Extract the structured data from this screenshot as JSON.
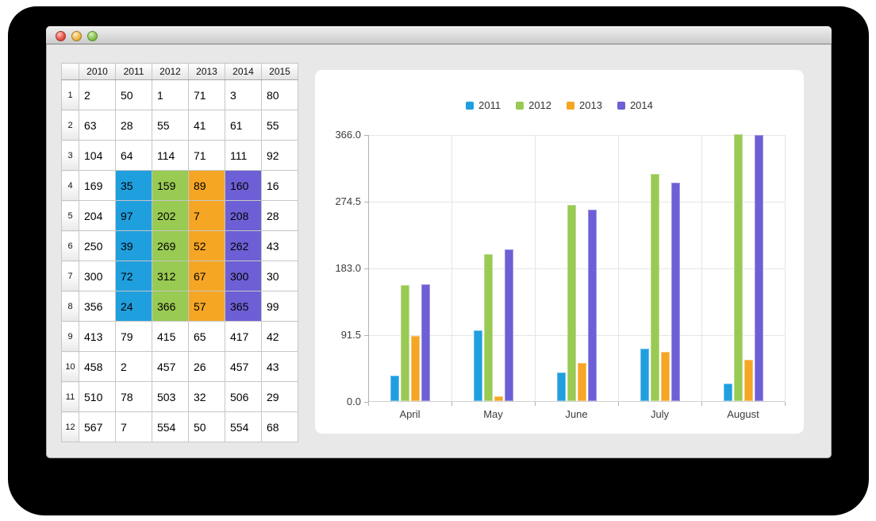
{
  "window": {
    "buttons": [
      {
        "name": "close",
        "color": "#e8584d"
      },
      {
        "name": "minimize",
        "color": "#f0bb4d"
      },
      {
        "name": "zoom",
        "color": "#8cc351"
      }
    ]
  },
  "table": {
    "column_headers": [
      "2010",
      "2011",
      "2012",
      "2013",
      "2014",
      "2015"
    ],
    "row_headers": [
      "1",
      "2",
      "3",
      "4",
      "5",
      "6",
      "7",
      "8",
      "9",
      "10",
      "11",
      "12"
    ],
    "rows": [
      [
        2,
        50,
        1,
        71,
        3,
        80
      ],
      [
        63,
        28,
        55,
        41,
        61,
        55
      ],
      [
        104,
        64,
        114,
        71,
        111,
        92
      ],
      [
        169,
        35,
        159,
        89,
        160,
        16
      ],
      [
        204,
        97,
        202,
        7,
        208,
        28
      ],
      [
        250,
        39,
        269,
        52,
        262,
        43
      ],
      [
        300,
        72,
        312,
        67,
        300,
        30
      ],
      [
        356,
        24,
        366,
        57,
        365,
        99
      ],
      [
        413,
        79,
        415,
        65,
        417,
        42
      ],
      [
        458,
        2,
        457,
        26,
        457,
        43
      ],
      [
        510,
        78,
        503,
        32,
        506,
        29
      ],
      [
        567,
        7,
        554,
        50,
        554,
        68
      ]
    ],
    "highlight": {
      "first_row": 4,
      "last_row": 8,
      "columns": {
        "2011": "#209fdf",
        "2012": "#99ca53",
        "2013": "#f6a625",
        "2014": "#6d5fd5"
      }
    }
  },
  "chart_data": {
    "type": "bar",
    "categories": [
      "April",
      "May",
      "June",
      "July",
      "August"
    ],
    "series": [
      {
        "name": "2011",
        "color": "#209fdf",
        "values": [
          35,
          97,
          39,
          72,
          24
        ]
      },
      {
        "name": "2012",
        "color": "#99ca53",
        "values": [
          159,
          202,
          269,
          312,
          366
        ]
      },
      {
        "name": "2013",
        "color": "#f6a625",
        "values": [
          89,
          7,
          52,
          67,
          57
        ]
      },
      {
        "name": "2014",
        "color": "#6d5fd5",
        "values": [
          160,
          208,
          262,
          300,
          365
        ]
      }
    ],
    "ylim": [
      0,
      366
    ],
    "ytick_labels": [
      "0.0",
      "91.5",
      "183.0",
      "274.5",
      "366.0"
    ],
    "xlabel": "",
    "ylabel": "",
    "title": "",
    "legend_position": "top",
    "grid": true
  }
}
